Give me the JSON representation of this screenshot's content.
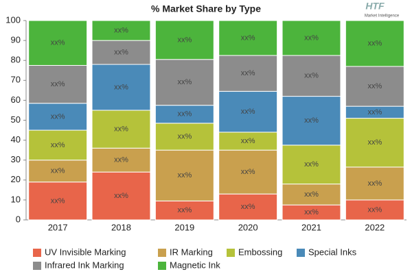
{
  "chart_data": {
    "type": "stacked-bar",
    "title": "% Market Share by Type",
    "categories": [
      "2017",
      "2018",
      "2019",
      "2020",
      "2021",
      "2022"
    ],
    "series": [
      {
        "name": "UV Invisible Marking",
        "color": "#e8654a",
        "values": [
          19,
          24,
          9.5,
          13,
          7.5,
          10
        ],
        "value_labels": [
          "xx%",
          "xx%",
          "xx%",
          "xx%",
          "xx%",
          "xx%"
        ]
      },
      {
        "name": "IR Marking",
        "color": "#c9a04e",
        "values": [
          11,
          12,
          25.5,
          22,
          10.5,
          16.5
        ],
        "value_labels": [
          "xx%",
          "xx%",
          "xx%",
          "xx%",
          "xx%",
          "xx%"
        ]
      },
      {
        "name": "Embossing",
        "color": "#b5c23a",
        "values": [
          15,
          19,
          13.5,
          9,
          19.5,
          24.5
        ],
        "value_labels": [
          "xx%",
          "xx%",
          "xx%",
          "xx%",
          "xx%",
          "xx%"
        ]
      },
      {
        "name": "Special Inks",
        "color": "#4a8ab8",
        "values": [
          13.5,
          23,
          9,
          20.5,
          24.5,
          6
        ],
        "value_labels": [
          "xx%",
          "xx%",
          "xx%",
          "xx%",
          "xx%",
          "xx%"
        ]
      },
      {
        "name": "Infrared Ink Marking",
        "color": "#8c8c8c",
        "values": [
          19,
          12,
          23,
          18,
          20.5,
          20
        ],
        "value_labels": [
          "xx%",
          "xx%",
          "xx%",
          "xx%",
          "xx%",
          "xx%"
        ]
      },
      {
        "name": "Magnetic Ink",
        "color": "#4cb43c",
        "values": [
          22.5,
          10,
          19.5,
          17.5,
          17.5,
          23
        ],
        "value_labels": [
          "xx%",
          "xx%",
          "xx%",
          "xx%",
          "xx%",
          "xx%"
        ]
      }
    ],
    "ylim": [
      0,
      100
    ],
    "yticks": [
      0,
      10,
      20,
      30,
      40,
      50,
      60,
      70,
      80,
      90,
      100
    ],
    "grid": false
  },
  "logo": {
    "name": "HTF",
    "tagline": "Market Intelligence"
  }
}
